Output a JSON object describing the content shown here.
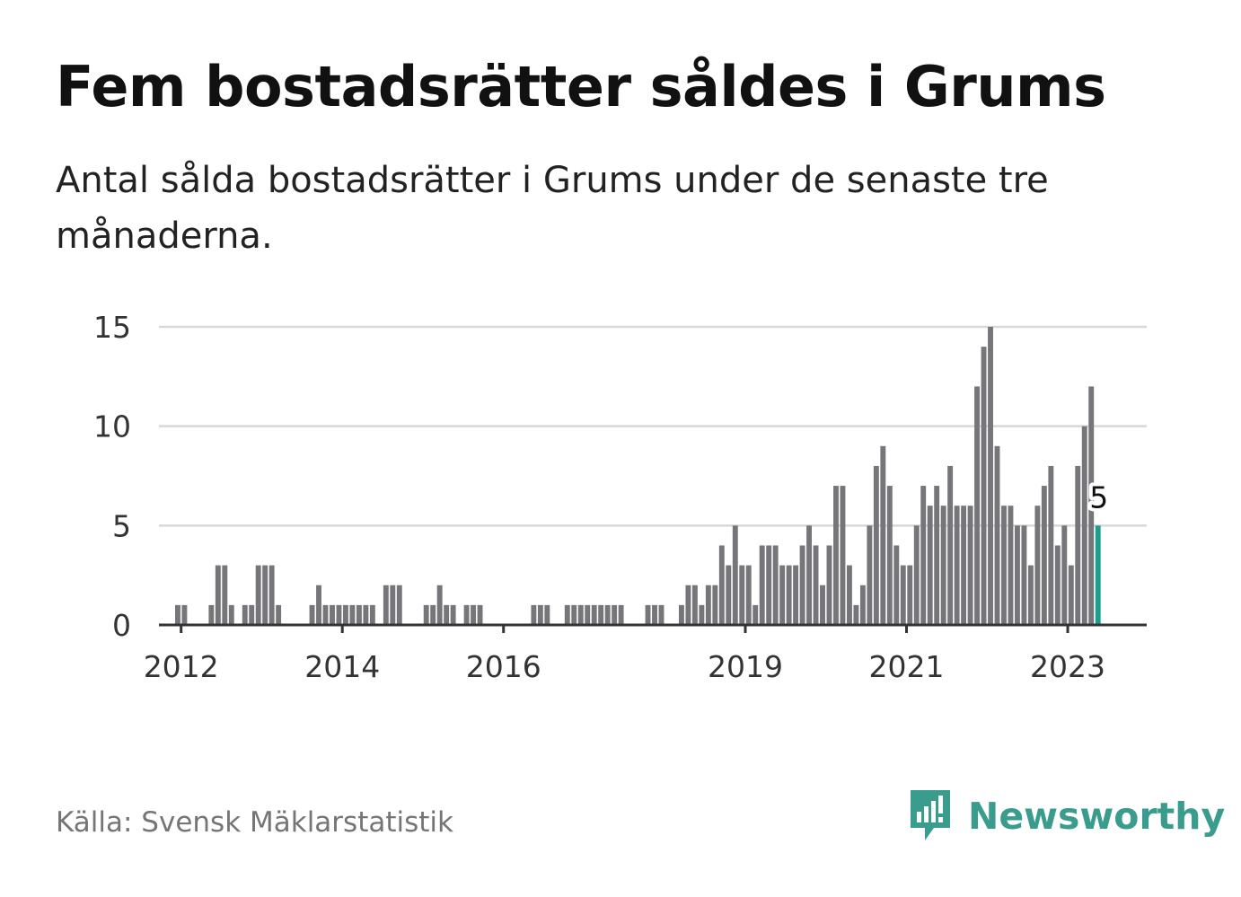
{
  "title": "Fem bostadsrätter såldes i Grums",
  "subtitle": "Antal sålda bostadsrätter i Grums under de senaste tre månaderna.",
  "source": "Källa: Svensk Mäklarstatistik",
  "brand": {
    "name": "Newsworthy",
    "icon": "newsworthy-logo-icon"
  },
  "colors": {
    "bar": "#76767a",
    "highlight": "#1b9e8e",
    "grid": "#d8d8d8",
    "axis": "#333333",
    "brand": "#3a9c8d"
  },
  "chart_data": {
    "type": "bar",
    "title": "Fem bostadsrätter såldes i Grums",
    "xlabel": "",
    "ylabel": "",
    "ylim": [
      0,
      15
    ],
    "yticks": [
      0,
      5,
      10,
      15
    ],
    "x_start": "2011-05",
    "x_end": "2023-02",
    "xticks": [
      {
        "label": "2012",
        "month": "2012-01"
      },
      {
        "label": "2014",
        "month": "2014-01"
      },
      {
        "label": "2016",
        "month": "2016-01"
      },
      {
        "label": "2019",
        "month": "2019-01"
      },
      {
        "label": "2021",
        "month": "2021-01"
      },
      {
        "label": "2023",
        "month": "2023-01"
      }
    ],
    "grid": true,
    "values": [
      0,
      0,
      0,
      0,
      0,
      0,
      0,
      1,
      1,
      0,
      0,
      0,
      1,
      3,
      3,
      1,
      0,
      1,
      1,
      3,
      3,
      3,
      1,
      0,
      0,
      0,
      0,
      1,
      2,
      1,
      1,
      1,
      1,
      1,
      1,
      1,
      1,
      0,
      2,
      2,
      2,
      0,
      0,
      0,
      1,
      1,
      2,
      1,
      1,
      0,
      1,
      1,
      1,
      0,
      0,
      0,
      0,
      0,
      0,
      0,
      1,
      1,
      1,
      0,
      0,
      1,
      1,
      1,
      1,
      1,
      1,
      1,
      1,
      1,
      0,
      0,
      0,
      1,
      1,
      1,
      0,
      0,
      1,
      2,
      2,
      1,
      2,
      2,
      4,
      3,
      5,
      3,
      3,
      1,
      4,
      4,
      4,
      3,
      3,
      3,
      4,
      5,
      4,
      2,
      4,
      7,
      7,
      3,
      1,
      2,
      5,
      8,
      9,
      7,
      4,
      3,
      3,
      5,
      7,
      6,
      7,
      6,
      8,
      6,
      6,
      6,
      12,
      14,
      15,
      9,
      6,
      6,
      5,
      5,
      3,
      6,
      7,
      8,
      4,
      5,
      3,
      8,
      10,
      12,
      5
    ],
    "highlight_index": 144,
    "highlight_label": "5"
  }
}
